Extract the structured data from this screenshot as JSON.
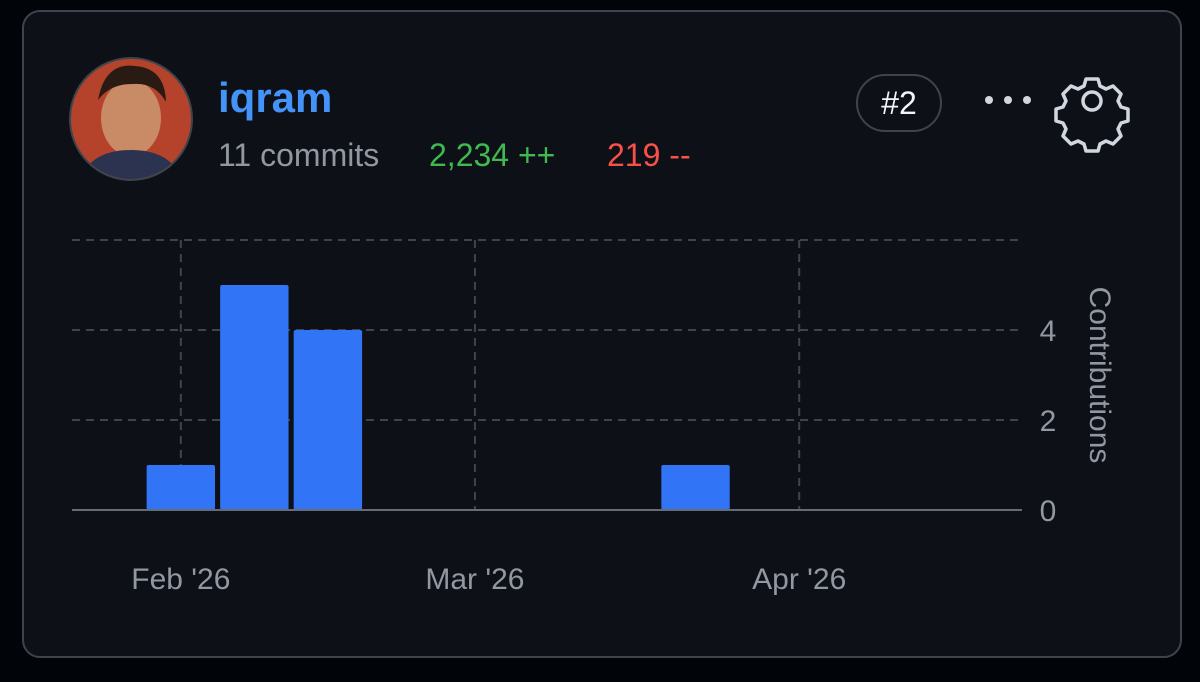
{
  "user": {
    "name": "iqram",
    "commits": "11 commits",
    "additions": "2,234 ++",
    "deletions": "219 --"
  },
  "rank": "#2",
  "chart_data": {
    "type": "bar",
    "x": [
      0,
      1,
      2,
      7
    ],
    "values": [
      1,
      5,
      4,
      1
    ],
    "color": "#3274f6",
    "xlim": [
      -1.48,
      11.44
    ],
    "xticks": [
      {
        "value": 0,
        "label": "Feb '26"
      },
      {
        "value": 4,
        "label": "Mar '26"
      },
      {
        "value": 8.41,
        "label": "Apr '26"
      }
    ],
    "ylim": [
      0,
      6
    ],
    "yticks": [
      0,
      2,
      4
    ],
    "y_label": "Contributions",
    "grid": true
  }
}
